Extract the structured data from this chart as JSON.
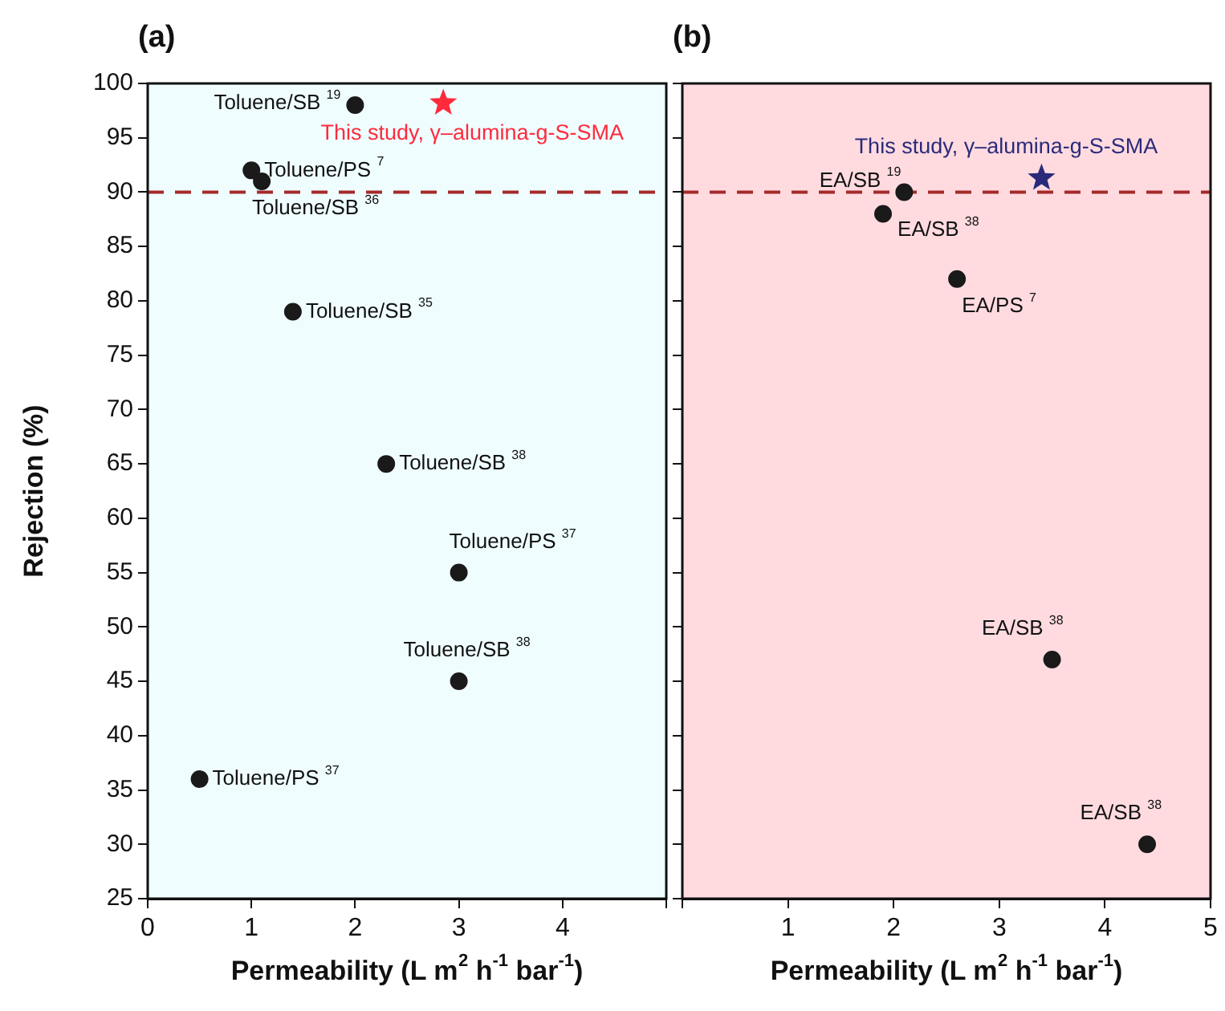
{
  "chart_data": [
    {
      "type": "scatter",
      "title": "(a)",
      "xlabel": "Permeability (L m$^{2}$ h$^{-1}$ bar$^{-1}$)",
      "ylabel": "Rejection (%)",
      "xlim": [
        0,
        5
      ],
      "xticks": [
        0,
        1,
        2,
        3,
        4,
        {
          "value": 5,
          "label": null
        }
      ],
      "ylim": [
        25,
        100
      ],
      "yticks": [
        25,
        30,
        35,
        40,
        45,
        50,
        55,
        60,
        65,
        70,
        75,
        80,
        85,
        90,
        95,
        100
      ],
      "series": [
        {
          "color": "#1a1a1a",
          "marker": "circle",
          "x": [
            2.0,
            1.0,
            1.1,
            1.4,
            2.3,
            3.0,
            3.0,
            0.5
          ],
          "values": [
            98,
            92,
            91,
            79,
            65,
            55,
            45,
            36
          ]
        },
        {
          "name": "This study, γ–alumina-g-S-SMA",
          "color": "#ff2a3c",
          "marker": "star",
          "x": [
            2.85
          ],
          "values": [
            98.2
          ]
        }
      ],
      "ref_lines": [
        {
          "axis": "y",
          "value": 90,
          "color": "#a52a2a",
          "line_style": "dashed"
        }
      ],
      "bands": [
        {
          "axis": "x",
          "from": 0,
          "to": 5,
          "color": "#effdff"
        }
      ],
      "annotations": [
        {
          "text": "Toluene/SB $^{19}$",
          "x": 2.0,
          "y": 98
        },
        {
          "text": "Toluene/PS $^{7}$",
          "x": 1.0,
          "y": 92
        },
        {
          "text": "Toluene/SB $^{36}$",
          "x": 1.1,
          "y": 91
        },
        {
          "text": "Toluene/SB $^{35}$",
          "x": 1.4,
          "y": 79
        },
        {
          "text": "Toluene/SB $^{38}$",
          "x": 2.3,
          "y": 65
        },
        {
          "text": "Toluene/PS $^{37}$",
          "x": 3.0,
          "y": 55
        },
        {
          "text": "Toluene/SB $^{38}$",
          "x": 3.0,
          "y": 45
        },
        {
          "text": "Toluene/PS $^{37}$",
          "x": 0.5,
          "y": 36
        }
      ]
    },
    {
      "type": "scatter",
      "title": "(b)",
      "xlabel": "Permeability (L m$^{2}$ h$^{-1}$ bar$^{-1}$)",
      "xlim": [
        0,
        5
      ],
      "xticks": [
        {
          "value": 0,
          "label": null
        },
        1,
        2,
        3,
        4,
        5
      ],
      "ylim": [
        25,
        100
      ],
      "yticks": [
        25,
        30,
        35,
        40,
        45,
        50,
        55,
        60,
        65,
        70,
        75,
        80,
        85,
        90,
        95,
        100
      ],
      "tick_labels": "x",
      "series": [
        {
          "color": "#1a1a1a",
          "marker": "circle",
          "x": [
            2.1,
            1.9,
            2.6,
            3.5,
            4.4
          ],
          "values": [
            90,
            88,
            82,
            47,
            30
          ]
        },
        {
          "name": "This study, γ–alumina-g-S-SMA",
          "color": "#2b2a7a",
          "marker": "star",
          "x": [
            3.4
          ],
          "values": [
            91.3
          ]
        }
      ],
      "ref_lines": [
        {
          "axis": "y",
          "value": 90,
          "color": "#a52a2a",
          "line_style": "dashed"
        }
      ],
      "bands": [
        {
          "axis": "x",
          "from": 0,
          "to": 5,
          "color": "#ffdbe0"
        }
      ],
      "annotations": [
        {
          "text": "EA/SB $^{19}$",
          "x": 2.1,
          "y": 90
        },
        {
          "text": "EA/SB $^{38}$",
          "x": 1.9,
          "y": 88
        },
        {
          "text": "EA/PS $^{7}$",
          "x": 2.6,
          "y": 82
        },
        {
          "text": "EA/SB $^{38}$",
          "x": 3.5,
          "y": 47
        },
        {
          "text": "EA/SB $^{38}$",
          "x": 4.4,
          "y": 30
        }
      ]
    }
  ]
}
